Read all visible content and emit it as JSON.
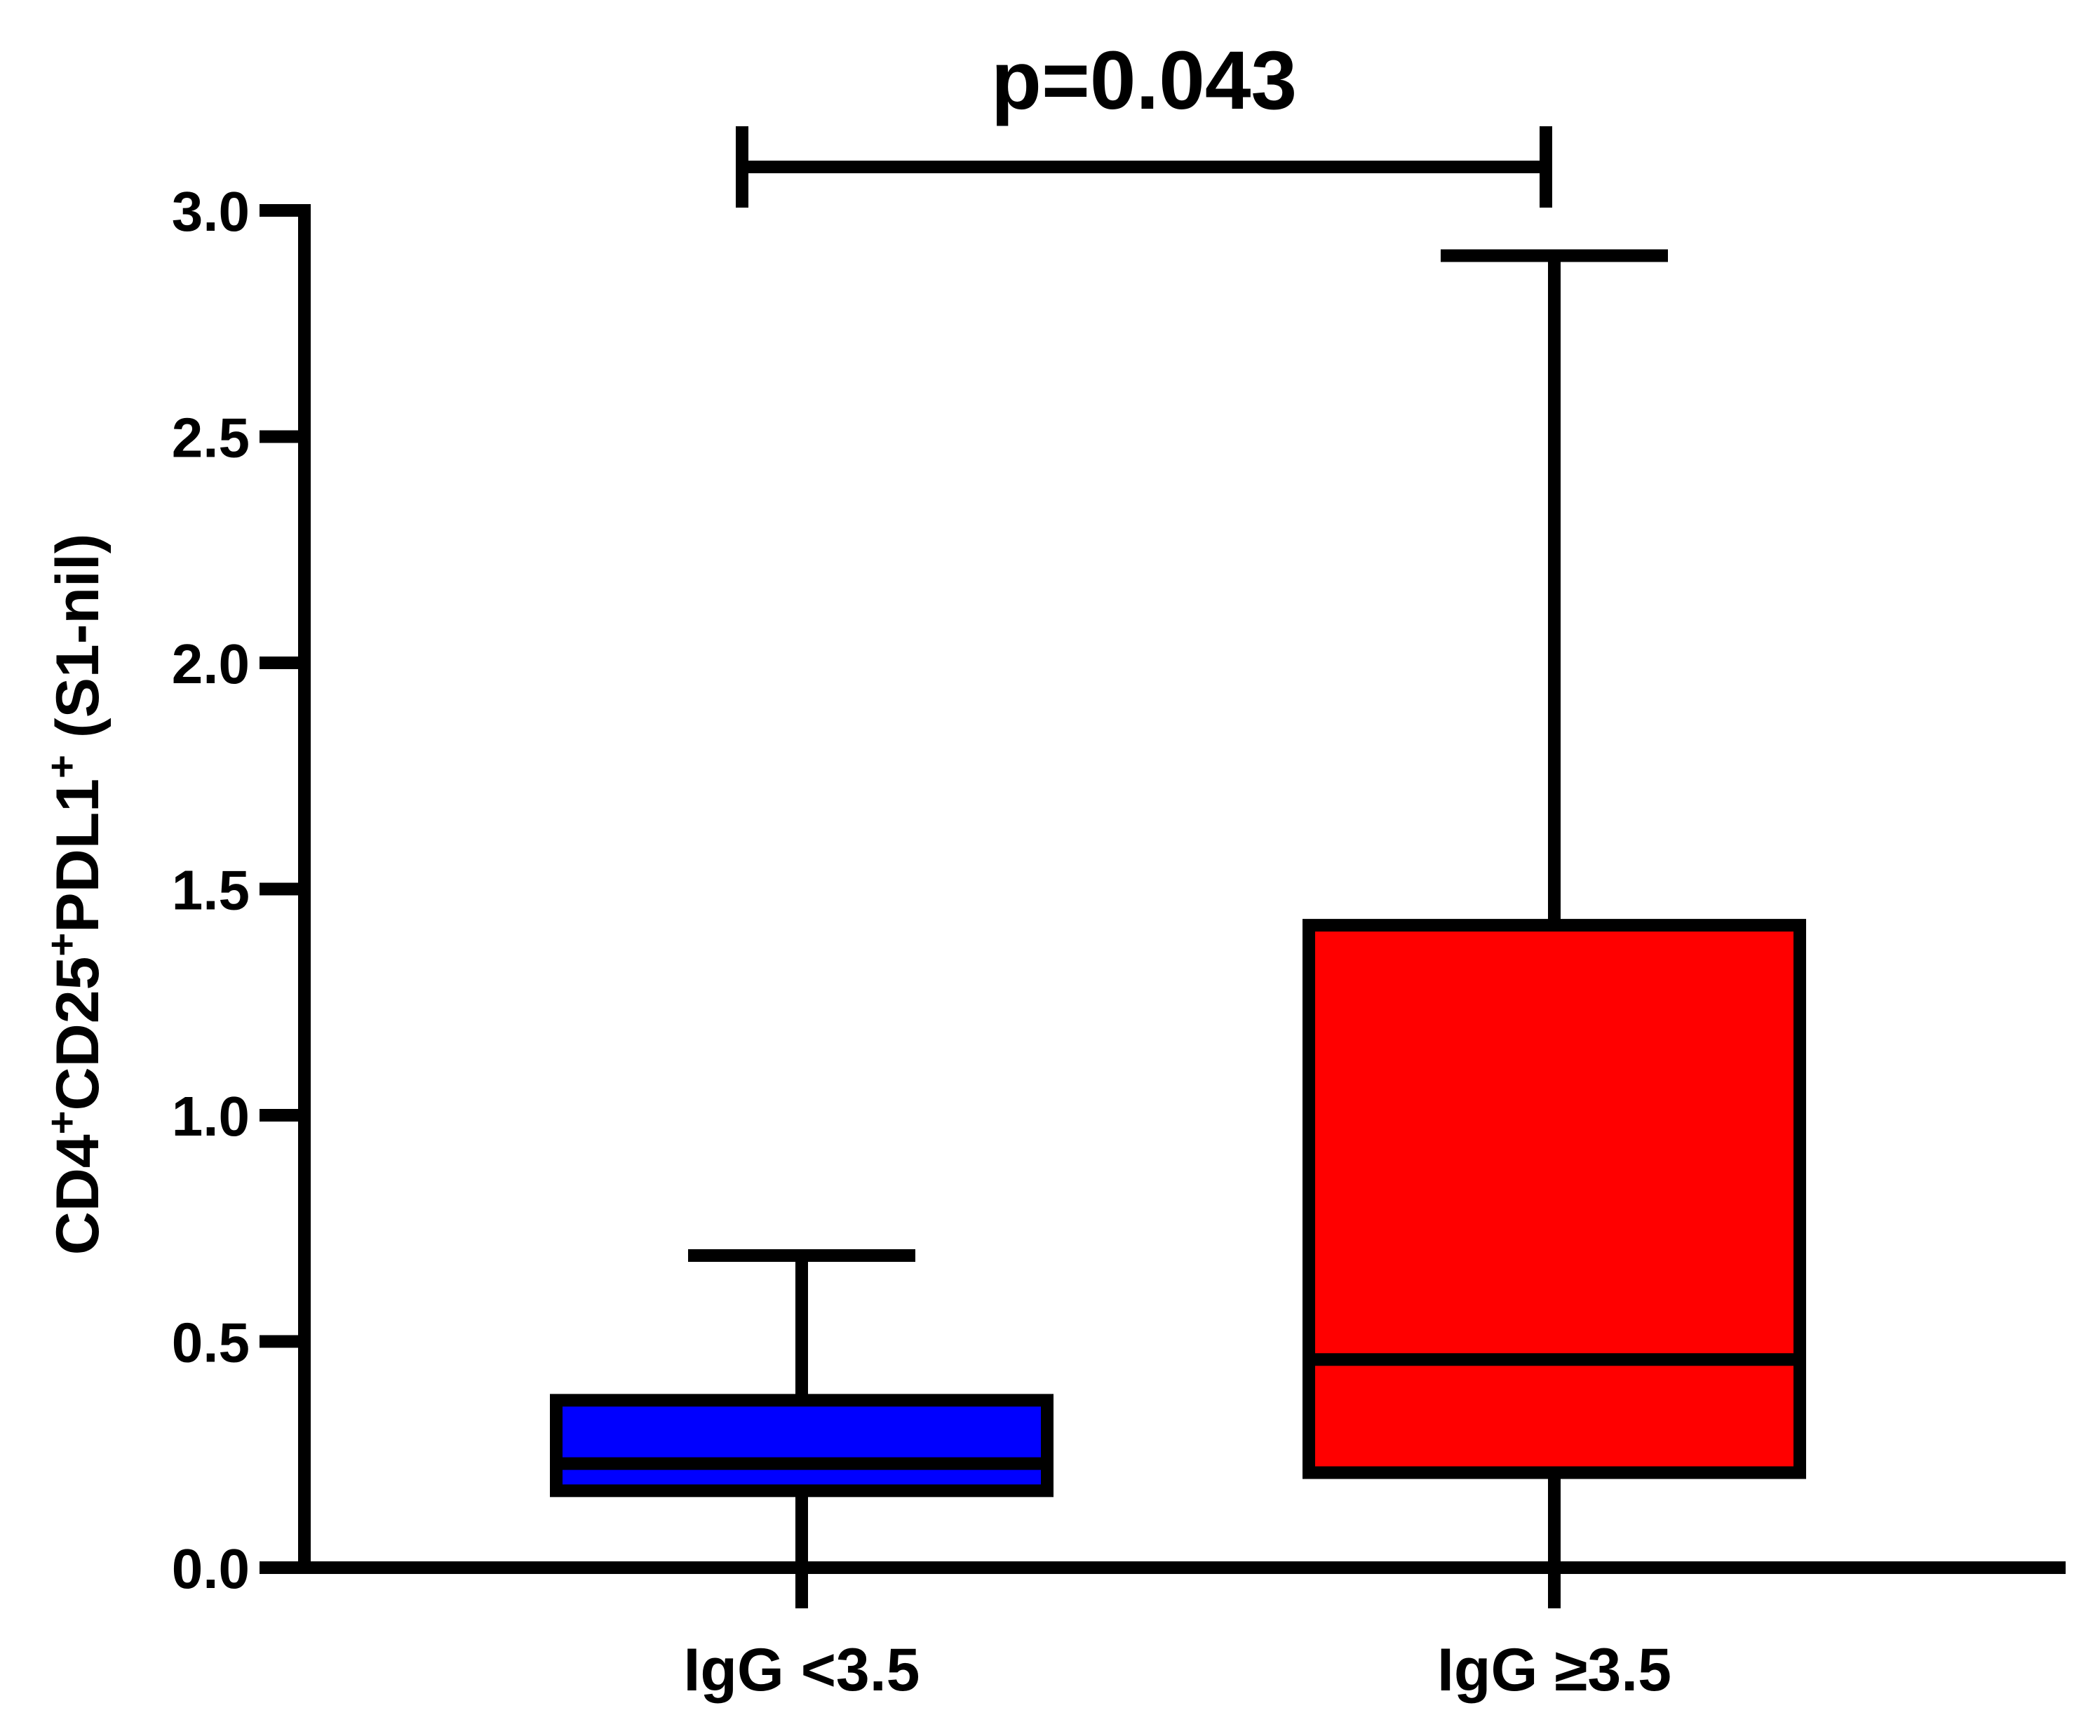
{
  "chart_data": {
    "type": "box",
    "title": "",
    "xlabel": "",
    "ylabel": "CD4⁺CD25⁺PDL1⁺ (S1-nil)",
    "ylabel_parts": [
      {
        "text": "CD4",
        "sup": false
      },
      {
        "text": "+",
        "sup": true
      },
      {
        "text": "CD25",
        "sup": false
      },
      {
        "text": "+",
        "sup": true
      },
      {
        "text": "PDL1",
        "sup": false
      },
      {
        "text": "+",
        "sup": true
      },
      {
        "text": " (S1-nil)",
        "sup": false
      }
    ],
    "ylim": [
      0,
      3.0
    ],
    "yticks": [
      0.0,
      0.5,
      1.0,
      1.5,
      2.0,
      2.5,
      3.0
    ],
    "ytick_labels": [
      "0.0",
      "0.5",
      "1.0",
      "1.5",
      "2.0",
      "2.5",
      "3.0"
    ],
    "categories": [
      "IgG <3.5",
      "IgG ≥3.5"
    ],
    "boxes": [
      {
        "category": "IgG <3.5",
        "min": 0.0,
        "q1": 0.17,
        "median": 0.23,
        "q3": 0.37,
        "max": 0.69,
        "color": "#0000ff"
      },
      {
        "category": "IgG ≥3.5",
        "min": 0.0,
        "q1": 0.21,
        "median": 0.46,
        "q3": 1.42,
        "max": 2.9,
        "color": "#ff0000"
      }
    ],
    "annotations": [
      {
        "type": "significance-bracket",
        "from": "IgG <3.5",
        "to": "IgG ≥3.5",
        "text": "p=0.043"
      }
    ],
    "grid": false,
    "legend": "none"
  }
}
